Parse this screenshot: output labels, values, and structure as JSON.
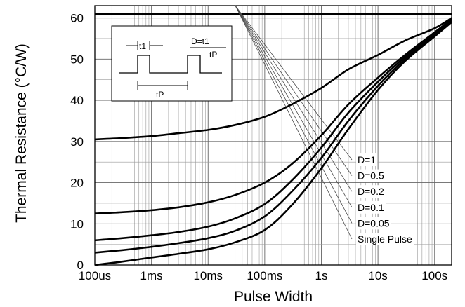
{
  "chart_data": {
    "type": "line",
    "title": "",
    "xlabel": "Pulse Width",
    "ylabel": "Thermal Resistance (°C/W)",
    "x_scale": "log",
    "xlim_seconds": [
      0.0001,
      200
    ],
    "ylim": [
      0,
      63
    ],
    "x_ticks": [
      {
        "label": "100us",
        "value": 0.0001
      },
      {
        "label": "1ms",
        "value": 0.001
      },
      {
        "label": "10ms",
        "value": 0.01
      },
      {
        "label": "100ms",
        "value": 0.1
      },
      {
        "label": "1s",
        "value": 1
      },
      {
        "label": "10s",
        "value": 10
      },
      {
        "label": "100s",
        "value": 100
      }
    ],
    "y_ticks": [
      0,
      10,
      20,
      30,
      40,
      50,
      60
    ],
    "grid": true,
    "reference_line": {
      "y": 61
    },
    "x_seconds": [
      0.0001,
      0.0003,
      0.001,
      0.003,
      0.01,
      0.03,
      0.1,
      0.3,
      1,
      3,
      10,
      30,
      100,
      200
    ],
    "series": [
      {
        "name": "D=0.5",
        "values": [
          30.5,
          30.8,
          31.3,
          32.0,
          32.8,
          34.0,
          36.0,
          39.0,
          43.0,
          47.5,
          51.0,
          54.5,
          57.5,
          60.0
        ]
      },
      {
        "name": "D=0.2",
        "values": [
          12.5,
          12.8,
          13.3,
          14.0,
          15.2,
          17.0,
          20.0,
          24.5,
          31.5,
          39.0,
          45.5,
          51.0,
          56.5,
          59.7
        ]
      },
      {
        "name": "D=0.1",
        "values": [
          6.0,
          6.5,
          7.2,
          8.0,
          9.3,
          11.3,
          14.8,
          20.5,
          28.5,
          37.0,
          44.5,
          50.5,
          56.0,
          59.5
        ]
      },
      {
        "name": "D=0.05",
        "values": [
          3.0,
          3.6,
          4.4,
          5.3,
          6.5,
          8.3,
          11.8,
          17.8,
          26.0,
          35.0,
          43.5,
          50.0,
          55.8,
          59.3
        ]
      },
      {
        "name": "Single Pulse",
        "values": [
          0.0,
          0.8,
          1.8,
          2.7,
          3.8,
          5.5,
          8.5,
          14.5,
          23.5,
          33.0,
          42.5,
          49.5,
          55.5,
          59.0
        ]
      }
    ],
    "legend": [
      "D=1",
      "D=0.5",
      "D=0.2",
      "D=0.1",
      "D=0.05",
      "Single Pulse"
    ],
    "legend_placement": "right",
    "inset": {
      "t1_label": "t1",
      "tp_label": "tP",
      "formula_numerator": "D=t1",
      "formula_denominator": "tP"
    }
  }
}
